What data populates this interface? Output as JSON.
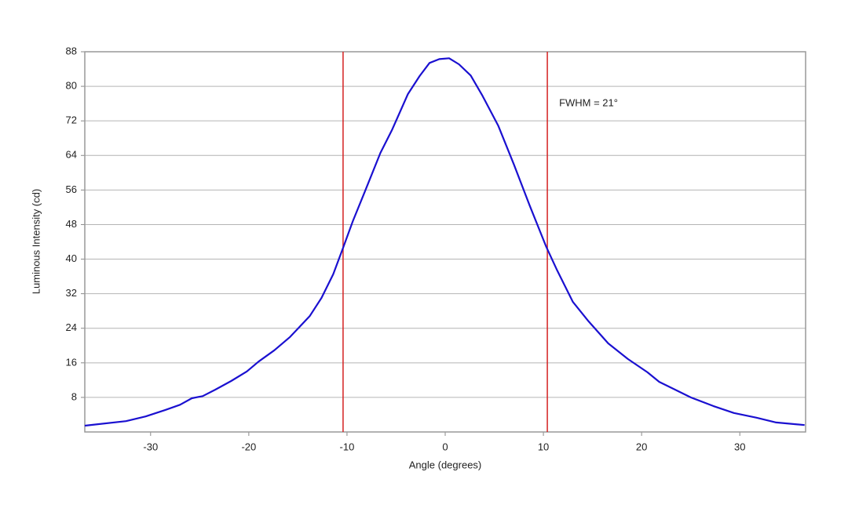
{
  "chart_data": {
    "type": "line",
    "x_label": "Angle (degrees)",
    "y_label": "Luminous Intensity (cd)",
    "annotation": "FWHM = 21°",
    "x": [
      -36.7,
      -32.5,
      -30.5,
      -28.5,
      -27,
      -25.8,
      -24.7,
      -23.4,
      -21.8,
      -20.2,
      -19,
      -17.4,
      -15.8,
      -13.8,
      -12.6,
      -11.4,
      -10.4,
      -9.4,
      -8.2,
      -6.6,
      -5.4,
      -3.8,
      -2.6,
      -1.6,
      -0.6,
      0.4,
      1.4,
      2.6,
      3.8,
      5.4,
      7,
      8.6,
      10.3,
      11.4,
      13,
      14.6,
      16.6,
      18.6,
      20.6,
      21.8,
      23.4,
      25,
      27.3,
      29.4,
      31.7,
      33.7,
      36.6
    ],
    "series": [
      {
        "color": "#1a10d0",
        "values": [
          1.45,
          2.5,
          3.6,
          5.1,
          6.3,
          7.8,
          8.3,
          9.8,
          11.8,
          14,
          16.3,
          18.9,
          22,
          26.8,
          31,
          36.5,
          42.6,
          48.8,
          55.5,
          64.6,
          70,
          78.2,
          82.4,
          85.4,
          86.3,
          86.5,
          85.1,
          82.5,
          77.8,
          70.9,
          61.9,
          52.4,
          42.8,
          37.4,
          30.1,
          25.6,
          20.5,
          16.9,
          13.8,
          11.6,
          9.8,
          8,
          6,
          4.4,
          3.3,
          2.2,
          1.6
        ]
      }
    ],
    "vlines": [
      -10.4,
      10.4
    ],
    "vline_color": "#d42020",
    "xlim": [
      -36.7,
      36.7
    ],
    "ylim": [
      0,
      88
    ],
    "xticks": [
      -30,
      -20,
      -10,
      0,
      10,
      20,
      30
    ],
    "yticks": [
      8,
      16,
      24,
      32,
      40,
      48,
      56,
      64,
      72,
      80,
      88
    ],
    "grid": true
  }
}
